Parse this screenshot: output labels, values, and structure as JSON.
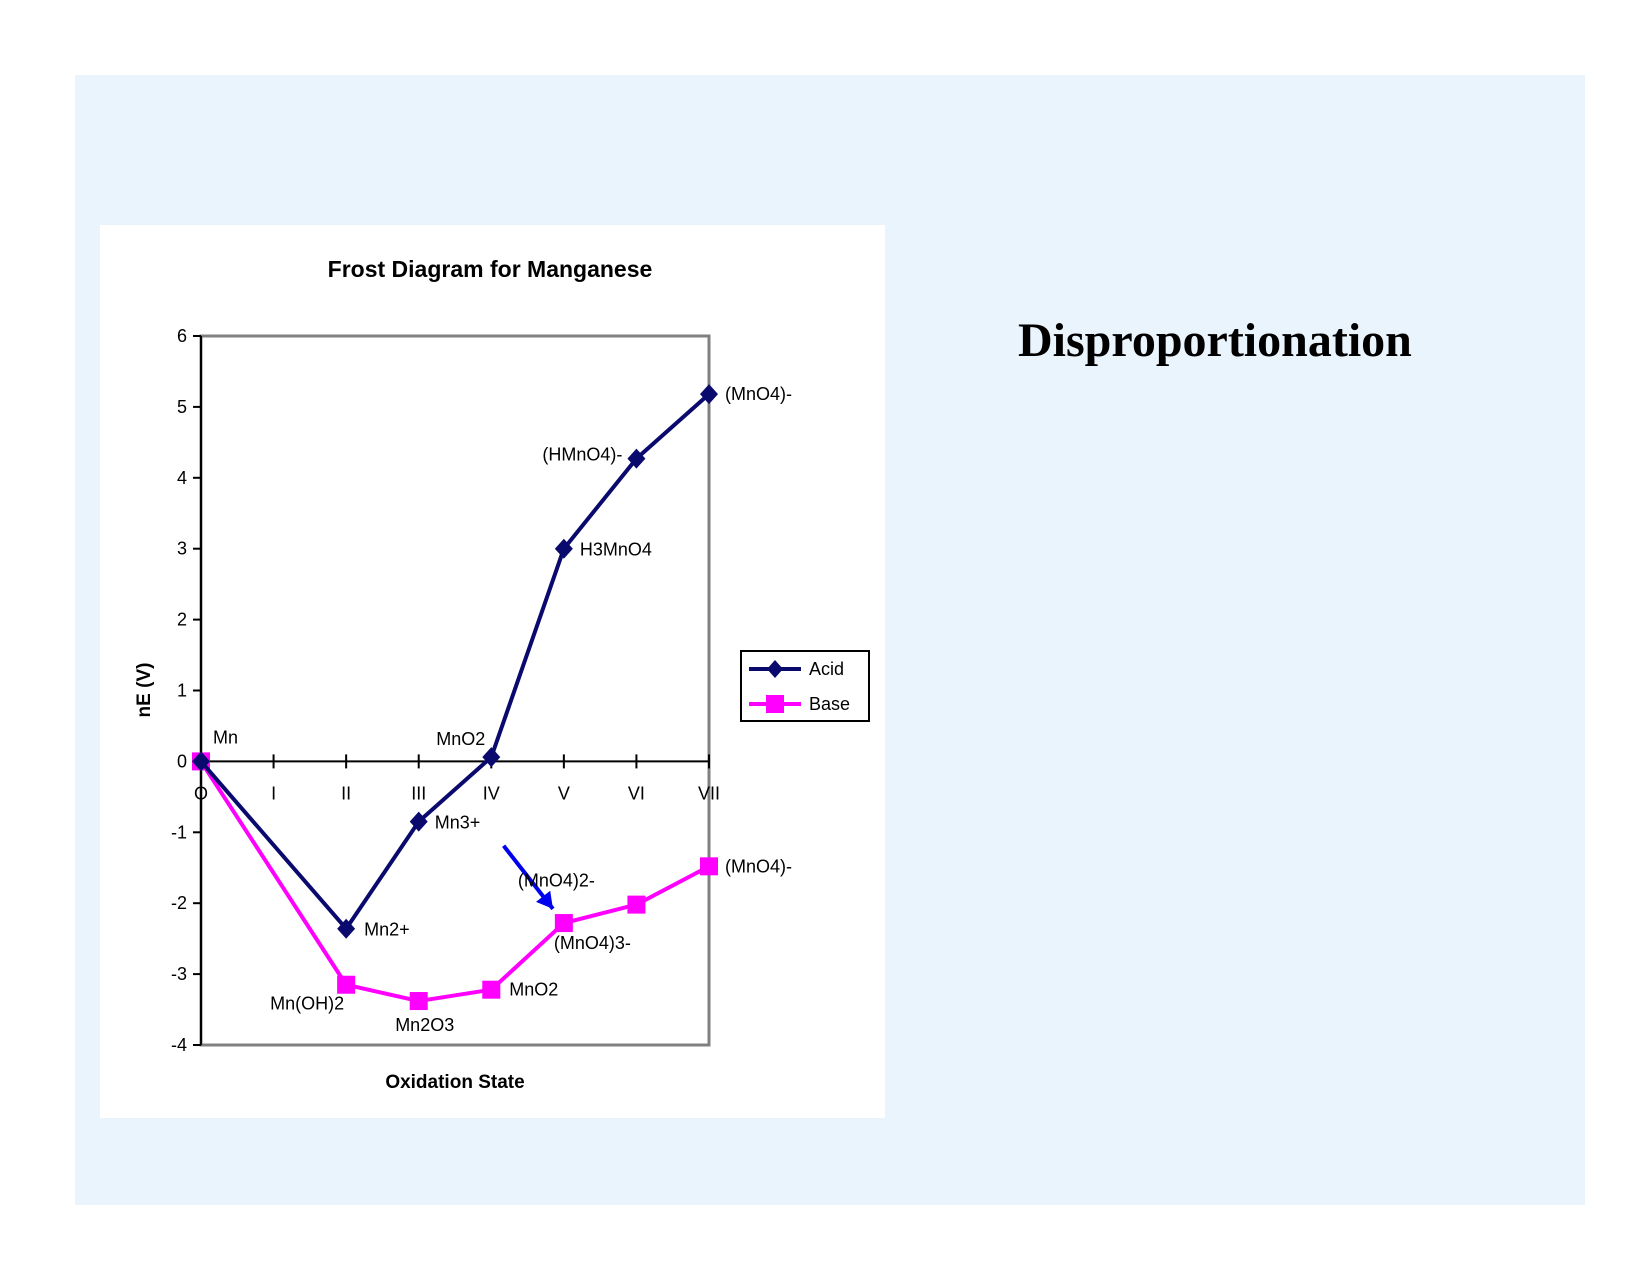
{
  "slide": {
    "title": "Disproportionation",
    "background": "#eaf4fd"
  },
  "chart_data": {
    "type": "line",
    "title": "Frost Diagram for Manganese",
    "xlabel": "Oxidation State",
    "ylabel": "nE (V)",
    "categories": [
      "O",
      "I",
      "II",
      "III",
      "IV",
      "V",
      "VI",
      "VII"
    ],
    "ylim": [
      -4,
      6
    ],
    "yticks": [
      6,
      5,
      4,
      3,
      2,
      1,
      0,
      -1,
      -2,
      -3,
      -4
    ],
    "grid": false,
    "legend_position": "right",
    "series": [
      {
        "name": "Acid",
        "color": "#0a0a6e",
        "marker": "diamond",
        "points": [
          {
            "x": 0,
            "y": 0,
            "label": "Mn"
          },
          {
            "x": 2,
            "y": -2.36,
            "label": "Mn2+"
          },
          {
            "x": 3,
            "y": -0.85,
            "label": "Mn3+"
          },
          {
            "x": 4,
            "y": 0.06,
            "label": "MnO2"
          },
          {
            "x": 5,
            "y": 3.0,
            "label": "H3MnO4"
          },
          {
            "x": 6,
            "y": 4.27,
            "label": "(HMnO4)-"
          },
          {
            "x": 7,
            "y": 5.18,
            "label": "(MnO4)-"
          }
        ]
      },
      {
        "name": "Base",
        "color": "#ff00ff",
        "marker": "square",
        "points": [
          {
            "x": 0,
            "y": 0,
            "label": ""
          },
          {
            "x": 2,
            "y": -3.15,
            "label": "Mn(OH)2"
          },
          {
            "x": 3,
            "y": -3.38,
            "label": "Mn2O3"
          },
          {
            "x": 4,
            "y": -3.22,
            "label": "MnO2"
          },
          {
            "x": 5,
            "y": -2.28,
            "label": "(MnO4)3-"
          },
          {
            "x": 6,
            "y": -2.02,
            "label": "(MnO4)2-"
          },
          {
            "x": 7,
            "y": -1.48,
            "label": "(MnO4)-"
          }
        ]
      }
    ],
    "annotations": [
      {
        "type": "arrow",
        "color": "#0000ee",
        "from": {
          "x": 4.17,
          "y": -1.19
        },
        "to": {
          "x": 4.85,
          "y": -2.08
        }
      }
    ]
  }
}
